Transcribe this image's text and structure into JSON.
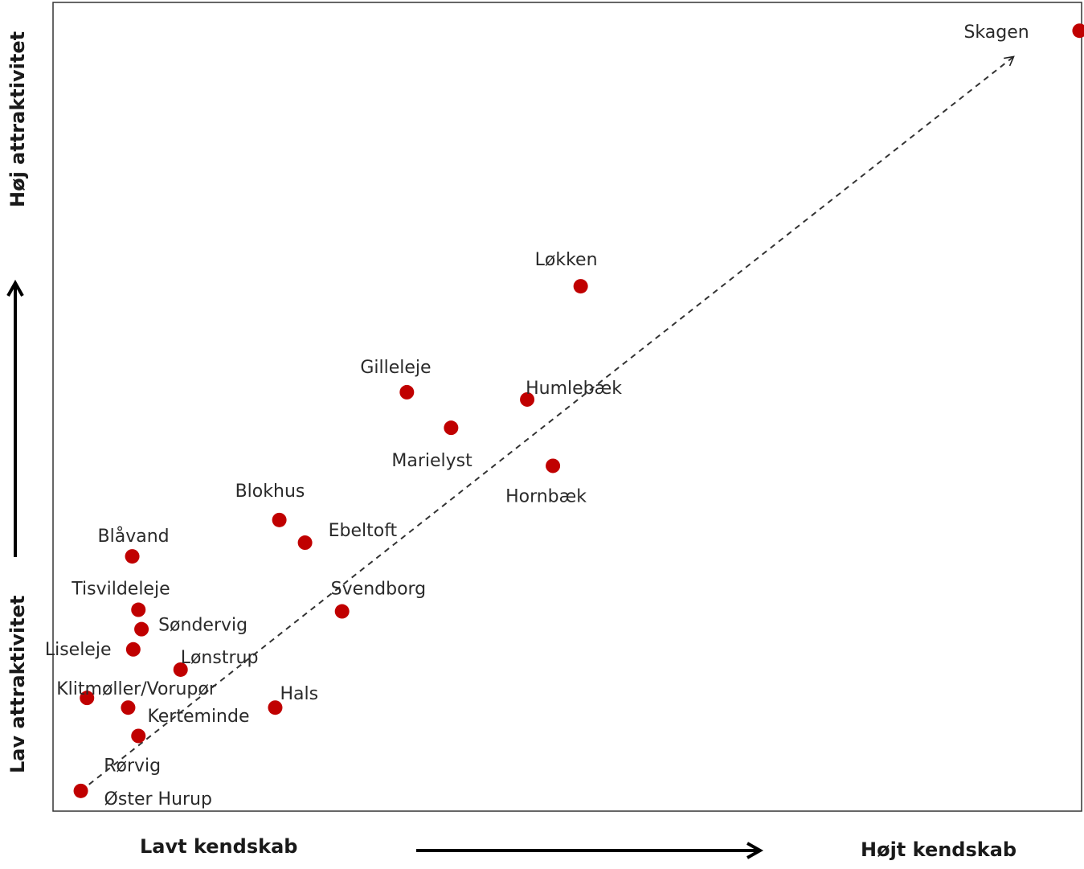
{
  "chart_data": {
    "type": "scatter",
    "axes": {
      "x_low_label": "Lavt kendskab",
      "x_high_label": "Højt kendskab",
      "y_low_label": "Lav attraktivitet",
      "y_high_label": "Høj attraktivitet"
    },
    "xlim": [
      0,
      100
    ],
    "ylim": [
      0,
      100
    ],
    "grid": false,
    "point_color": "#c00000",
    "trend": {
      "x0": 2.7,
      "y0": 2.5,
      "x1": 93.4,
      "y1": 93.3,
      "style": "dashed-arrow"
    },
    "points": [
      {
        "name": "Skagen",
        "x": 99.8,
        "y": 96.5
      },
      {
        "name": "Løkken",
        "x": 51.3,
        "y": 64.9
      },
      {
        "name": "Gilleleje",
        "x": 34.4,
        "y": 51.8
      },
      {
        "name": "Humlebæk",
        "x": 46.1,
        "y": 50.9
      },
      {
        "name": "Marielyst",
        "x": 38.7,
        "y": 47.4
      },
      {
        "name": "Hornbæk",
        "x": 48.6,
        "y": 42.7
      },
      {
        "name": "Blokhus",
        "x": 22.0,
        "y": 36.0
      },
      {
        "name": "Ebeltoft",
        "x": 24.5,
        "y": 33.2
      },
      {
        "name": "Blåvand",
        "x": 7.7,
        "y": 31.5
      },
      {
        "name": "Svendborg",
        "x": 28.1,
        "y": 24.7
      },
      {
        "name": "Tisvildeleje",
        "x": 8.3,
        "y": 24.9
      },
      {
        "name": "Søndervig",
        "x": 8.6,
        "y": 22.5
      },
      {
        "name": "Liseleje",
        "x": 7.8,
        "y": 20.0
      },
      {
        "name": "Lønstrup",
        "x": 12.4,
        "y": 17.5
      },
      {
        "name": "Klitmøller/Vorupør",
        "x": 3.3,
        "y": 14.0
      },
      {
        "name": "Kerteminde",
        "x": 7.3,
        "y": 12.8
      },
      {
        "name": "Hals",
        "x": 21.6,
        "y": 12.8
      },
      {
        "name": "Rørvig",
        "x": 8.3,
        "y": 9.3
      },
      {
        "name": "Øster Hurup",
        "x": 2.7,
        "y": 2.5
      }
    ]
  }
}
